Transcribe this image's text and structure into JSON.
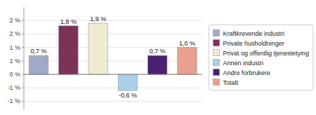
{
  "chart_data": {
    "type": "bar",
    "categories": [
      "Kraftkrevende industri",
      "Private husholdninger",
      "Privat og offentlig tjenestetying",
      "Annen industri",
      "Andre forbrukere",
      "Totalt"
    ],
    "values": [
      0.7,
      1.8,
      1.9,
      -0.6,
      0.7,
      1.0
    ],
    "value_labels": [
      "0,7 %",
      "1,8 %",
      "1,9 %",
      "-0,6 %",
      "0,7 %",
      "1,0 %"
    ],
    "colors": [
      "#a0aac8",
      "#7b3358",
      "#f0ebd0",
      "#aad0e8",
      "#4a2070",
      "#e8a090"
    ],
    "ylim": [
      -1.3,
      2.5
    ],
    "yticks": [
      {
        "value": 2.0,
        "label": "2 %"
      },
      {
        "value": 1.5,
        "label": "2 %"
      },
      {
        "value": 1.0,
        "label": "1 %"
      },
      {
        "value": 0.5,
        "label": "1 %"
      },
      {
        "value": 0.0,
        "label": "0 %"
      },
      {
        "value": -0.5,
        "label": "-1 %"
      },
      {
        "value": -1.0,
        "label": "-1 %"
      }
    ],
    "grid": true,
    "legend": "right",
    "data_labels": true,
    "tick_labels": "y"
  }
}
